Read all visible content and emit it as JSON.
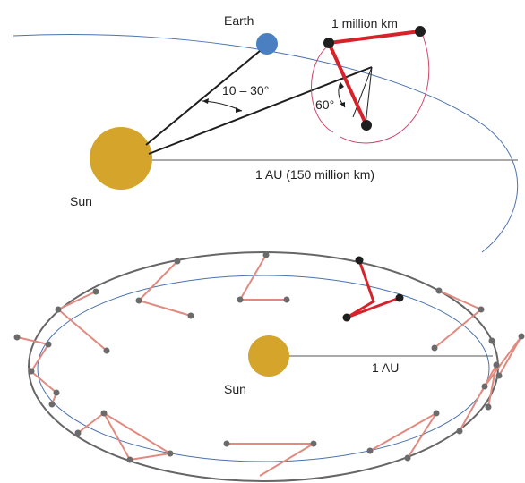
{
  "labels": {
    "earth": "Earth",
    "sun_top": "Sun",
    "distance_top": "1 AU (150 million km)",
    "arm_length": "1 million km",
    "trail_angle": "10 – 30°",
    "arm_angle": "60°",
    "sun_bottom": "Sun",
    "distance_bottom": "1 AU"
  },
  "colors": {
    "sun": "#D4A52A",
    "earth": "#4A7FC1",
    "orbit": "#4A72AE",
    "arm": "#D6232B",
    "arm_light": "#E08A80",
    "node": "#1E1E1E",
    "gray_node": "#6B6B6B",
    "line": "#1E1E1E"
  }
}
